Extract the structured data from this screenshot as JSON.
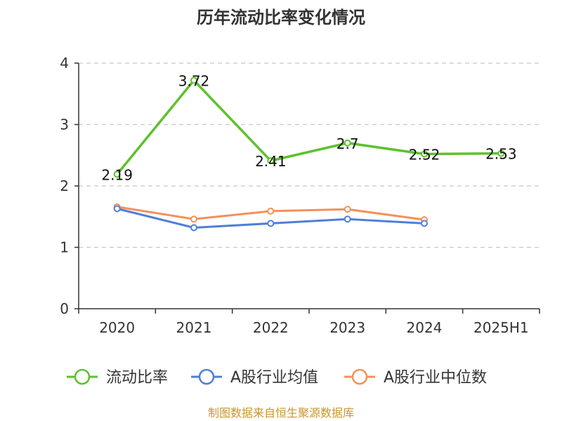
{
  "chart_data": {
    "type": "line",
    "title": "历年流动比率变化情况",
    "categories": [
      "2020",
      "2021",
      "2022",
      "2023",
      "2024",
      "2025H1"
    ],
    "ylim": [
      0,
      4
    ],
    "yticks": [
      "0",
      "1",
      "2",
      "3",
      "4"
    ],
    "grid": true,
    "legend_position": "bottom",
    "series": [
      {
        "name": "流动比率",
        "color": "#5dc22c",
        "values": [
          2.19,
          3.72,
          2.41,
          2.7,
          2.52,
          2.53
        ],
        "labels": [
          "2.19",
          "3.72",
          "2.41",
          "2.7",
          "2.52",
          "2.53"
        ]
      },
      {
        "name": "A股行业均值",
        "color": "#4f7fd6",
        "values": [
          1.63,
          1.32,
          1.39,
          1.46,
          1.39,
          null
        ]
      },
      {
        "name": "A股行业中位数",
        "color": "#f5905a",
        "values": [
          1.66,
          1.46,
          1.59,
          1.62,
          1.45,
          null
        ]
      }
    ],
    "source_note": "制图数据来自恒生聚源数据库"
  }
}
